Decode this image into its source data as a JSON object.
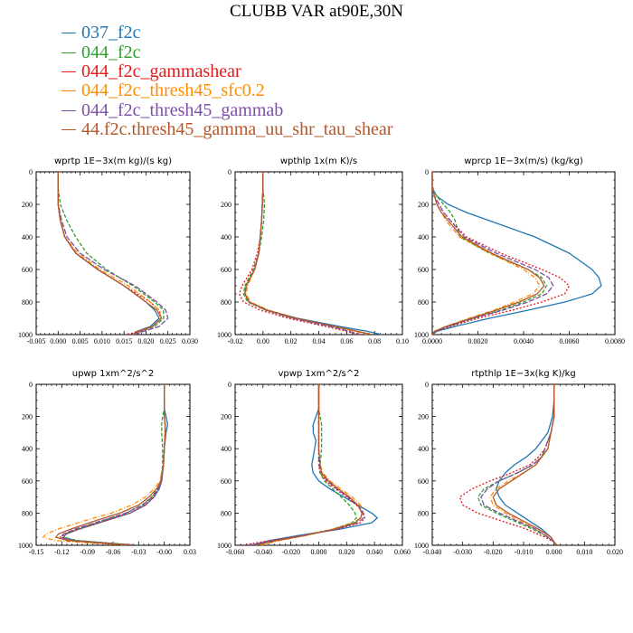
{
  "title": "CLUBB VAR at90E,30N",
  "legend": [
    {
      "label": "037_f2c",
      "color": "#1f77b4"
    },
    {
      "label": "044_f2c",
      "color": "#2ca02c"
    },
    {
      "label": "044_f2c_gammashear",
      "color": "#e41a1c"
    },
    {
      "label": "044_f2c_thresh45_sfc0.2",
      "color": "#ff8c00"
    },
    {
      "label": "044_f2c_thresh45_gammab",
      "color": "#7b4fa6"
    },
    {
      "label": "44.f2c.thresh45_gamma_uu_shr_tau_shear",
      "color": "#b5572a"
    }
  ],
  "chart_data": [
    {
      "type": "line",
      "title": "wprtp  1E−3x(m kg)/(s kg)",
      "xlim": [
        -0.005,
        0.03
      ],
      "ylim": [
        1000,
        0
      ],
      "xticks": [
        "-0.005",
        "0.000",
        "0.005",
        "0.010",
        "0.015",
        "0.020",
        "0.025",
        "0.030"
      ],
      "yticks": [
        "0",
        "200",
        "400",
        "600",
        "800",
        "1000"
      ],
      "y": [
        0,
        100,
        200,
        300,
        400,
        500,
        600,
        700,
        800,
        850,
        900,
        950,
        980,
        1000
      ],
      "series": [
        {
          "name": "037_f2c",
          "x": [
            0,
            0,
            0,
            0.0005,
            0.0015,
            0.004,
            0.009,
            0.015,
            0.02,
            0.022,
            0.023,
            0.021,
            0.018,
            0.017
          ]
        },
        {
          "name": "044_f2c",
          "x": [
            0,
            0,
            0.0005,
            0.002,
            0.004,
            0.0065,
            0.011,
            0.017,
            0.022,
            0.024,
            0.024,
            0.022,
            0.019,
            0.017
          ]
        },
        {
          "name": "044_f2c_gammashear",
          "x": [
            0,
            0,
            0,
            0.0005,
            0.0015,
            0.004,
            0.009,
            0.015,
            0.021,
            0.023,
            0.0235,
            0.0215,
            0.018,
            0.016
          ]
        },
        {
          "name": "044_f2c_thresh45_sfc0.2",
          "x": [
            0,
            0,
            0,
            0.0005,
            0.0015,
            0.0045,
            0.0095,
            0.016,
            0.021,
            0.023,
            0.0235,
            0.0215,
            0.0185,
            0.017
          ]
        },
        {
          "name": "044_f2c_thresh45_gammab",
          "x": [
            0,
            0,
            0,
            0.0008,
            0.002,
            0.005,
            0.0105,
            0.0175,
            0.0225,
            0.0245,
            0.025,
            0.023,
            0.0195,
            0.0175
          ]
        },
        {
          "name": "44.f2c.thresh45_gamma_uu_shr_tau_shear",
          "x": [
            0,
            0,
            0,
            0.0005,
            0.0015,
            0.004,
            0.009,
            0.015,
            0.02,
            0.0225,
            0.0235,
            0.0215,
            0.0185,
            0.017
          ]
        }
      ]
    },
    {
      "type": "line",
      "title": "wpthlp  1x(m K)/s",
      "xlim": [
        -0.02,
        0.1
      ],
      "ylim": [
        1000,
        0
      ],
      "xticks": [
        "-0.02",
        "0.00",
        "0.02",
        "0.04",
        "0.06",
        "0.08",
        "0.10"
      ],
      "yticks": [
        "0",
        "200",
        "400",
        "600",
        "800",
        "1000"
      ],
      "y": [
        0,
        100,
        200,
        300,
        400,
        500,
        600,
        700,
        750,
        800,
        850,
        900,
        950,
        980,
        1000
      ],
      "series": [
        {
          "name": "037_f2c",
          "x": [
            0,
            0,
            -0.0005,
            -0.001,
            -0.002,
            -0.003,
            -0.006,
            -0.012,
            -0.013,
            -0.01,
            0.003,
            0.025,
            0.055,
            0.075,
            0.085
          ]
        },
        {
          "name": "044_f2c",
          "x": [
            0,
            0,
            0.001,
            0.0005,
            -0.001,
            -0.003,
            -0.007,
            -0.013,
            -0.014,
            -0.011,
            0.002,
            0.022,
            0.05,
            0.068,
            0.078
          ]
        },
        {
          "name": "044_f2c_gammashear",
          "x": [
            0,
            0,
            -0.0005,
            -0.001,
            -0.002,
            -0.004,
            -0.008,
            -0.015,
            -0.017,
            -0.014,
            -0.002,
            0.018,
            0.045,
            0.06,
            0.068
          ]
        },
        {
          "name": "044_f2c_thresh45_sfc0.2",
          "x": [
            0,
            0,
            -0.0005,
            -0.001,
            -0.002,
            -0.003,
            -0.006,
            -0.011,
            -0.012,
            -0.009,
            0.004,
            0.024,
            0.05,
            0.066,
            0.075
          ]
        },
        {
          "name": "044_f2c_thresh45_gammab",
          "x": [
            0,
            0,
            -0.0005,
            -0.001,
            -0.002,
            -0.003,
            -0.006,
            -0.012,
            -0.013,
            -0.01,
            0.002,
            0.021,
            0.048,
            0.062,
            0.07
          ]
        },
        {
          "name": "44.f2c.thresh45_gamma_uu_shr_tau_shear",
          "x": [
            0,
            0,
            -0.0005,
            -0.001,
            -0.002,
            -0.003,
            -0.006,
            -0.012,
            -0.013,
            -0.01,
            0.003,
            0.023,
            0.052,
            0.068,
            0.078
          ]
        }
      ]
    },
    {
      "type": "line",
      "title": "wprcp  1E−3x(m/s) (kg/kg)",
      "xlim": [
        0,
        0.008
      ],
      "ylim": [
        1000,
        0
      ],
      "xticks": [
        "0.0000",
        "0.0020",
        "0.0040",
        "0.0060",
        "0.0080"
      ],
      "yticks": [
        "0",
        "200",
        "400",
        "600",
        "800",
        "1000"
      ],
      "y": [
        0,
        100,
        150,
        200,
        250,
        300,
        400,
        500,
        600,
        650,
        700,
        750,
        800,
        850,
        900,
        950,
        980,
        1000
      ],
      "series": [
        {
          "name": "037_f2c",
          "x": [
            0,
            0,
            0.0002,
            0.0007,
            0.0015,
            0.0025,
            0.0045,
            0.006,
            0.007,
            0.0073,
            0.0074,
            0.007,
            0.0058,
            0.0042,
            0.0025,
            0.001,
            0.0002,
            0
          ]
        },
        {
          "name": "044_f2c",
          "x": [
            0,
            0,
            0.0002,
            0.0005,
            0.0008,
            0.001,
            0.0012,
            0.0025,
            0.0042,
            0.0048,
            0.005,
            0.0048,
            0.004,
            0.003,
            0.0018,
            0.0007,
            0.0001,
            0
          ]
        },
        {
          "name": "044_f2c_gammashear",
          "x": [
            0,
            0,
            0.0001,
            0.0003,
            0.0005,
            0.0008,
            0.0015,
            0.003,
            0.0048,
            0.0056,
            0.006,
            0.0058,
            0.0048,
            0.0035,
            0.002,
            0.0008,
            0.0001,
            0
          ]
        },
        {
          "name": "044_f2c_thresh45_sfc0.2",
          "x": [
            0,
            0,
            0.0001,
            0.0002,
            0.0004,
            0.0006,
            0.0012,
            0.0025,
            0.004,
            0.0045,
            0.0047,
            0.0044,
            0.0036,
            0.0027,
            0.0016,
            0.0006,
            0.0001,
            0
          ]
        },
        {
          "name": "044_f2c_thresh45_gammab",
          "x": [
            0,
            0,
            0.0001,
            0.0003,
            0.0005,
            0.0008,
            0.0014,
            0.0028,
            0.0045,
            0.0051,
            0.0053,
            0.005,
            0.0042,
            0.0031,
            0.0018,
            0.0007,
            0.0001,
            0
          ]
        },
        {
          "name": "44.f2c.thresh45_gamma_uu_shr_tau_shear",
          "x": [
            0,
            0,
            0.0001,
            0.0002,
            0.0004,
            0.0007,
            0.0013,
            0.0026,
            0.0042,
            0.0047,
            0.0049,
            0.0046,
            0.0038,
            0.0028,
            0.0017,
            0.0006,
            0.0001,
            0
          ]
        }
      ]
    },
    {
      "type": "line",
      "title": "upwp  1xm^2/s^2",
      "xlim": [
        -0.15,
        0.03
      ],
      "ylim": [
        1000,
        0
      ],
      "xticks": [
        "-0.15",
        "-0.12",
        "-0.09",
        "-0.06",
        "-0.03",
        "-0.00",
        "0.03"
      ],
      "yticks": [
        "0",
        "200",
        "400",
        "600",
        "800",
        "1000"
      ],
      "y": [
        0,
        150,
        200,
        250,
        300,
        400,
        500,
        600,
        650,
        700,
        750,
        800,
        850,
        900,
        930,
        950,
        970,
        985,
        1000
      ],
      "series": [
        {
          "name": "037_f2c",
          "x": [
            0,
            0,
            0.002,
            0.004,
            0.002,
            0,
            -0.001,
            -0.003,
            -0.006,
            -0.012,
            -0.022,
            -0.04,
            -0.07,
            -0.1,
            -0.115,
            -0.118,
            -0.105,
            -0.07,
            -0.03
          ]
        },
        {
          "name": "044_f2c",
          "x": [
            0,
            0,
            -0.002,
            -0.003,
            -0.003,
            -0.002,
            -0.002,
            -0.004,
            -0.008,
            -0.015,
            -0.026,
            -0.045,
            -0.074,
            -0.102,
            -0.116,
            -0.118,
            -0.102,
            -0.068,
            -0.03
          ]
        },
        {
          "name": "044_f2c_gammashear",
          "x": [
            0,
            0,
            0,
            0.001,
            0.001,
            0,
            -0.001,
            -0.003,
            -0.006,
            -0.012,
            -0.022,
            -0.04,
            -0.07,
            -0.1,
            -0.115,
            -0.122,
            -0.11,
            -0.075,
            -0.035
          ]
        },
        {
          "name": "044_f2c_thresh45_sfc0.2",
          "x": [
            0,
            0,
            0,
            0.001,
            0.001,
            0,
            -0.001,
            -0.005,
            -0.012,
            -0.022,
            -0.038,
            -0.062,
            -0.095,
            -0.125,
            -0.138,
            -0.142,
            -0.128,
            -0.09,
            -0.04
          ]
        },
        {
          "name": "044_f2c_thresh45_gammab",
          "x": [
            0,
            0,
            0,
            0.001,
            0.001,
            0,
            -0.001,
            -0.003,
            -0.007,
            -0.014,
            -0.025,
            -0.045,
            -0.075,
            -0.105,
            -0.118,
            -0.121,
            -0.108,
            -0.073,
            -0.033
          ]
        },
        {
          "name": "44.f2c.thresh45_gamma_uu_shr_tau_shear",
          "x": [
            0,
            0,
            0,
            0.001,
            0.001,
            0,
            -0.001,
            -0.004,
            -0.009,
            -0.018,
            -0.03,
            -0.052,
            -0.082,
            -0.11,
            -0.124,
            -0.127,
            -0.113,
            -0.077,
            -0.035
          ]
        }
      ]
    },
    {
      "type": "line",
      "title": "vpwp  1xm^2/s^2",
      "xlim": [
        -0.06,
        0.06
      ],
      "ylim": [
        1000,
        0
      ],
      "xticks": [
        "-0.060",
        "-0.040",
        "-0.020",
        "0.000",
        "0.020",
        "0.040",
        "0.060"
      ],
      "yticks": [
        "0",
        "200",
        "400",
        "600",
        "800",
        "1000"
      ],
      "y": [
        0,
        150,
        200,
        250,
        300,
        350,
        400,
        500,
        550,
        600,
        650,
        700,
        750,
        800,
        830,
        860,
        900,
        940,
        970,
        1000
      ],
      "series": [
        {
          "name": "037_f2c",
          "x": [
            0,
            0,
            -0.002,
            -0.004,
            -0.004,
            -0.002,
            -0.003,
            -0.005,
            -0.004,
            0,
            0.008,
            0.018,
            0.028,
            0.038,
            0.042,
            0.038,
            0.015,
            -0.015,
            -0.035,
            -0.048
          ]
        },
        {
          "name": "044_f2c",
          "x": [
            0,
            0,
            0.001,
            0.002,
            0.002,
            0.002,
            0.002,
            0.001,
            0.001,
            0.004,
            0.01,
            0.016,
            0.022,
            0.026,
            0.027,
            0.024,
            0.01,
            -0.012,
            -0.03,
            -0.045
          ]
        },
        {
          "name": "044_f2c_gammashear",
          "x": [
            0,
            0,
            0,
            0,
            0,
            0,
            0,
            0,
            0.001,
            0.005,
            0.012,
            0.02,
            0.027,
            0.032,
            0.033,
            0.03,
            0.013,
            -0.012,
            -0.035,
            -0.055
          ]
        },
        {
          "name": "044_f2c_thresh45_sfc0.2",
          "x": [
            0,
            0,
            0,
            0,
            0,
            0,
            0,
            0.001,
            0.003,
            0.008,
            0.016,
            0.024,
            0.03,
            0.032,
            0.03,
            0.025,
            0.01,
            -0.01,
            -0.028,
            -0.042
          ]
        },
        {
          "name": "044_f2c_thresh45_gammab",
          "x": [
            0,
            0,
            0,
            0,
            0,
            0,
            0,
            0,
            0.002,
            0.006,
            0.013,
            0.021,
            0.028,
            0.032,
            0.032,
            0.028,
            0.012,
            -0.012,
            -0.032,
            -0.05
          ]
        },
        {
          "name": "44.f2c.thresh45_gamma_uu_shr_tau_shear",
          "x": [
            0,
            0,
            0,
            0,
            0,
            0,
            0,
            0.001,
            0.002,
            0.007,
            0.014,
            0.022,
            0.028,
            0.031,
            0.03,
            0.026,
            0.011,
            -0.01,
            -0.03,
            -0.046
          ]
        }
      ]
    },
    {
      "type": "line",
      "title": "rtpthlp  1E−3x(kg K)/kg",
      "xlim": [
        -0.04,
        0.02
      ],
      "ylim": [
        1000,
        0
      ],
      "xticks": [
        "-0.040",
        "-0.030",
        "-0.020",
        "-0.010",
        "0.000",
        "0.010",
        "0.020"
      ],
      "yticks": [
        "0",
        "200",
        "400",
        "600",
        "800",
        "1000"
      ],
      "y": [
        0,
        100,
        200,
        300,
        400,
        450,
        500,
        550,
        600,
        650,
        700,
        750,
        800,
        850,
        900,
        950,
        980,
        1000
      ],
      "series": [
        {
          "name": "037_f2c",
          "x": [
            0,
            0,
            -0.0005,
            -0.002,
            -0.006,
            -0.009,
            -0.013,
            -0.016,
            -0.018,
            -0.019,
            -0.018,
            -0.016,
            -0.012,
            -0.008,
            -0.004,
            -0.001,
            0,
            0.001
          ]
        },
        {
          "name": "044_f2c",
          "x": [
            0,
            0,
            0,
            -0.001,
            -0.003,
            -0.004,
            -0.007,
            -0.012,
            -0.018,
            -0.023,
            -0.025,
            -0.024,
            -0.019,
            -0.013,
            -0.007,
            -0.002,
            0,
            0.001
          ]
        },
        {
          "name": "044_f2c_gammashear",
          "x": [
            0,
            0,
            0,
            -0.001,
            -0.003,
            -0.005,
            -0.008,
            -0.014,
            -0.021,
            -0.027,
            -0.031,
            -0.03,
            -0.025,
            -0.017,
            -0.009,
            -0.003,
            0,
            0.001
          ]
        },
        {
          "name": "044_f2c_thresh45_sfc0.2",
          "x": [
            0,
            0,
            0,
            -0.001,
            -0.002,
            -0.004,
            -0.006,
            -0.01,
            -0.015,
            -0.019,
            -0.021,
            -0.02,
            -0.016,
            -0.011,
            -0.006,
            -0.002,
            0,
            0.001
          ]
        },
        {
          "name": "044_f2c_thresh45_gammab",
          "x": [
            0,
            0,
            0,
            -0.001,
            -0.003,
            -0.004,
            -0.007,
            -0.012,
            -0.018,
            -0.022,
            -0.024,
            -0.023,
            -0.018,
            -0.012,
            -0.006,
            -0.002,
            0,
            0.001
          ]
        },
        {
          "name": "44.f2c.thresh45_gamma_uu_shr_tau_shear",
          "x": [
            0,
            0,
            0,
            -0.001,
            -0.002,
            -0.004,
            -0.006,
            -0.01,
            -0.014,
            -0.018,
            -0.02,
            -0.019,
            -0.015,
            -0.01,
            -0.005,
            -0.001,
            0,
            0.001
          ]
        }
      ]
    }
  ]
}
